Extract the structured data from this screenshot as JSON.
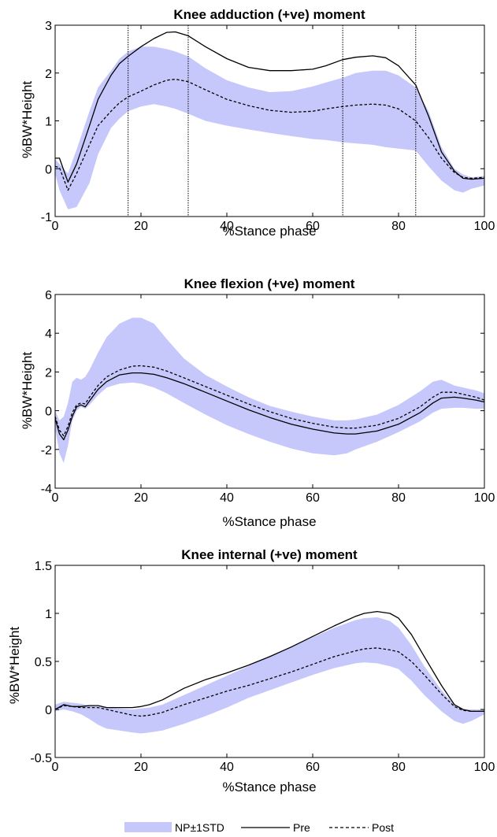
{
  "colors": {
    "band": "#c6c8fb",
    "line": "#000000",
    "frame": "#000000"
  },
  "legend": {
    "items": [
      {
        "label": "NP±1STD",
        "style": "band"
      },
      {
        "label": "Pre",
        "style": "solid"
      },
      {
        "label": "Post",
        "style": "dashed"
      }
    ]
  },
  "chart_data": [
    {
      "type": "line",
      "title": "Knee adduction (+ve) moment",
      "xlabel": "%Stance phase",
      "ylabel": "%BW*Height",
      "xlim": [
        0,
        100
      ],
      "ylim": [
        -1,
        3
      ],
      "xticks": [
        0,
        20,
        40,
        60,
        80,
        100
      ],
      "yticks": [
        -1,
        0,
        1,
        2,
        3
      ],
      "xtick_labels": [
        "0",
        "20",
        "40",
        "60",
        "80",
        "100"
      ],
      "ytick_labels": [
        "-1",
        "0",
        "1",
        "2",
        "3"
      ],
      "vlines": [
        17,
        31,
        67,
        84
      ],
      "x": [
        0,
        1,
        3,
        5,
        8,
        10,
        13,
        15,
        17,
        20,
        23,
        26,
        28,
        31,
        35,
        40,
        45,
        50,
        55,
        60,
        63,
        67,
        70,
        74,
        77,
        80,
        84,
        87,
        90,
        93,
        95,
        97,
        100
      ],
      "series": [
        {
          "name": "Pre",
          "style": "solid",
          "values": [
            0.22,
            0.22,
            -0.28,
            0.1,
            0.9,
            1.45,
            1.95,
            2.2,
            2.35,
            2.55,
            2.72,
            2.85,
            2.86,
            2.78,
            2.55,
            2.3,
            2.12,
            2.05,
            2.05,
            2.08,
            2.15,
            2.28,
            2.33,
            2.36,
            2.32,
            2.15,
            1.75,
            1.1,
            0.35,
            -0.05,
            -0.2,
            -0.22,
            -0.2
          ]
        },
        {
          "name": "Post",
          "style": "dashed",
          "values": [
            0.05,
            0.02,
            -0.45,
            -0.1,
            0.5,
            0.9,
            1.2,
            1.38,
            1.5,
            1.62,
            1.75,
            1.85,
            1.87,
            1.82,
            1.65,
            1.45,
            1.32,
            1.22,
            1.18,
            1.2,
            1.25,
            1.3,
            1.33,
            1.35,
            1.33,
            1.25,
            1.0,
            0.65,
            0.22,
            -0.08,
            -0.18,
            -0.2,
            -0.18
          ]
        },
        {
          "name": "NP±1STD upper",
          "style": "band-upper",
          "values": [
            0.2,
            0.1,
            -0.1,
            0.4,
            1.2,
            1.7,
            2.05,
            2.3,
            2.45,
            2.55,
            2.55,
            2.5,
            2.45,
            2.35,
            2.1,
            1.85,
            1.7,
            1.6,
            1.62,
            1.72,
            1.8,
            1.9,
            2.0,
            2.05,
            2.05,
            1.95,
            1.7,
            1.2,
            0.45,
            0.0,
            -0.12,
            -0.18,
            -0.15
          ]
        },
        {
          "name": "NP±1STD lower",
          "style": "band-lower",
          "values": [
            -0.1,
            -0.45,
            -0.85,
            -0.8,
            -0.3,
            0.3,
            0.85,
            1.05,
            1.2,
            1.3,
            1.35,
            1.3,
            1.25,
            1.15,
            1.0,
            0.9,
            0.82,
            0.75,
            0.68,
            0.62,
            0.6,
            0.55,
            0.53,
            0.5,
            0.45,
            0.42,
            0.38,
            0.05,
            -0.25,
            -0.45,
            -0.5,
            -0.42,
            -0.35
          ]
        }
      ]
    },
    {
      "type": "line",
      "title": "Knee flexion (+ve) moment",
      "xlabel": "%Stance phase",
      "ylabel": "%BW*Height",
      "xlim": [
        0,
        100
      ],
      "ylim": [
        -4,
        6
      ],
      "xticks": [
        0,
        20,
        40,
        60,
        80,
        100
      ],
      "yticks": [
        -4,
        -2,
        0,
        2,
        4,
        6
      ],
      "xtick_labels": [
        "0",
        "20",
        "40",
        "60",
        "80",
        "100"
      ],
      "ytick_labels": [
        "-4",
        "-2",
        "0",
        "2",
        "4",
        "6"
      ],
      "vlines": [],
      "x": [
        0,
        1,
        2,
        3,
        4,
        5,
        6,
        7,
        8,
        10,
        12,
        15,
        18,
        20,
        23,
        26,
        30,
        35,
        40,
        45,
        50,
        55,
        60,
        65,
        68,
        70,
        75,
        80,
        85,
        88,
        90,
        93,
        95,
        98,
        100
      ],
      "series": [
        {
          "name": "Pre",
          "style": "solid",
          "values": [
            -0.4,
            -1.2,
            -1.5,
            -1.0,
            -0.3,
            0.2,
            0.3,
            0.2,
            0.5,
            1.1,
            1.5,
            1.85,
            1.95,
            1.95,
            1.88,
            1.7,
            1.4,
            0.95,
            0.5,
            0.05,
            -0.35,
            -0.7,
            -0.95,
            -1.15,
            -1.2,
            -1.2,
            -1.05,
            -0.7,
            -0.1,
            0.4,
            0.65,
            0.7,
            0.65,
            0.55,
            0.45
          ]
        },
        {
          "name": "Post",
          "style": "dashed",
          "values": [
            -0.3,
            -1.0,
            -1.3,
            -0.8,
            -0.1,
            0.3,
            0.4,
            0.35,
            0.7,
            1.3,
            1.75,
            2.1,
            2.3,
            2.32,
            2.25,
            2.05,
            1.7,
            1.25,
            0.8,
            0.35,
            -0.05,
            -0.4,
            -0.65,
            -0.85,
            -0.9,
            -0.9,
            -0.75,
            -0.4,
            0.2,
            0.7,
            0.95,
            0.95,
            0.85,
            0.7,
            0.55
          ]
        },
        {
          "name": "NP±1STD upper",
          "style": "band-upper",
          "values": [
            0.0,
            -0.5,
            -0.3,
            0.4,
            1.5,
            1.7,
            1.6,
            1.75,
            2.1,
            3.0,
            3.8,
            4.5,
            4.8,
            4.8,
            4.5,
            3.7,
            2.7,
            1.85,
            1.25,
            0.7,
            0.25,
            -0.05,
            -0.3,
            -0.5,
            -0.5,
            -0.45,
            -0.2,
            0.3,
            1.0,
            1.5,
            1.6,
            1.3,
            1.2,
            1.05,
            0.9
          ]
        },
        {
          "name": "NP±1STD lower",
          "style": "band-lower",
          "values": [
            -0.9,
            -2.2,
            -2.7,
            -1.8,
            -0.5,
            0.0,
            0.2,
            0.1,
            0.3,
            0.8,
            1.2,
            1.4,
            1.45,
            1.4,
            1.2,
            0.9,
            0.4,
            -0.2,
            -0.75,
            -1.2,
            -1.6,
            -1.95,
            -2.2,
            -2.3,
            -2.2,
            -2.0,
            -1.6,
            -1.1,
            -0.55,
            -0.1,
            0.1,
            0.15,
            0.15,
            0.1,
            0.1
          ]
        }
      ]
    },
    {
      "type": "line",
      "title": "Knee internal (+ve) moment",
      "xlabel": "%Stance phase",
      "ylabel": "%BW*Height",
      "xlim": [
        0,
        100
      ],
      "ylim": [
        -0.5,
        1.5
      ],
      "xticks": [
        0,
        20,
        40,
        60,
        80,
        100
      ],
      "yticks": [
        -0.5,
        0,
        0.5,
        1,
        1.5
      ],
      "xtick_labels": [
        "0",
        "20",
        "40",
        "60",
        "80",
        "100"
      ],
      "ytick_labels": [
        "-0.5",
        "0",
        "0.5",
        "1",
        "1.5"
      ],
      "vlines": [],
      "x": [
        0,
        2,
        4,
        6,
        8,
        10,
        12,
        15,
        18,
        20,
        22,
        25,
        30,
        35,
        40,
        45,
        50,
        55,
        60,
        65,
        70,
        72,
        75,
        78,
        80,
        83,
        86,
        90,
        93,
        95,
        97,
        100
      ],
      "series": [
        {
          "name": "Pre",
          "style": "solid",
          "values": [
            0.0,
            0.05,
            0.03,
            0.03,
            0.04,
            0.04,
            0.02,
            0.02,
            0.02,
            0.03,
            0.05,
            0.1,
            0.22,
            0.31,
            0.38,
            0.46,
            0.55,
            0.65,
            0.76,
            0.87,
            0.97,
            1.0,
            1.02,
            1.0,
            0.95,
            0.78,
            0.55,
            0.25,
            0.05,
            0.0,
            -0.02,
            -0.02
          ]
        },
        {
          "name": "Post",
          "style": "dashed",
          "values": [
            0.0,
            0.04,
            0.03,
            0.02,
            0.02,
            0.02,
            0.0,
            -0.03,
            -0.06,
            -0.07,
            -0.06,
            -0.03,
            0.05,
            0.12,
            0.19,
            0.25,
            0.32,
            0.39,
            0.47,
            0.55,
            0.61,
            0.63,
            0.64,
            0.62,
            0.6,
            0.5,
            0.36,
            0.16,
            0.03,
            -0.01,
            -0.02,
            -0.02
          ]
        },
        {
          "name": "NP±1STD upper",
          "style": "band-upper",
          "values": [
            0.05,
            0.08,
            0.07,
            0.06,
            0.04,
            0.03,
            0.02,
            0.01,
            0.0,
            0.01,
            0.02,
            0.05,
            0.15,
            0.25,
            0.35,
            0.45,
            0.55,
            0.65,
            0.75,
            0.85,
            0.93,
            0.95,
            0.96,
            0.92,
            0.85,
            0.67,
            0.45,
            0.2,
            0.05,
            0.0,
            0.0,
            0.0
          ]
        },
        {
          "name": "NP±1STD lower",
          "style": "band-lower",
          "values": [
            -0.02,
            0.0,
            -0.02,
            -0.05,
            -0.1,
            -0.16,
            -0.2,
            -0.22,
            -0.24,
            -0.25,
            -0.24,
            -0.22,
            -0.15,
            -0.07,
            0.02,
            0.12,
            0.2,
            0.28,
            0.36,
            0.43,
            0.48,
            0.49,
            0.48,
            0.45,
            0.42,
            0.3,
            0.15,
            -0.02,
            -0.12,
            -0.15,
            -0.12,
            -0.05
          ]
        }
      ]
    }
  ]
}
